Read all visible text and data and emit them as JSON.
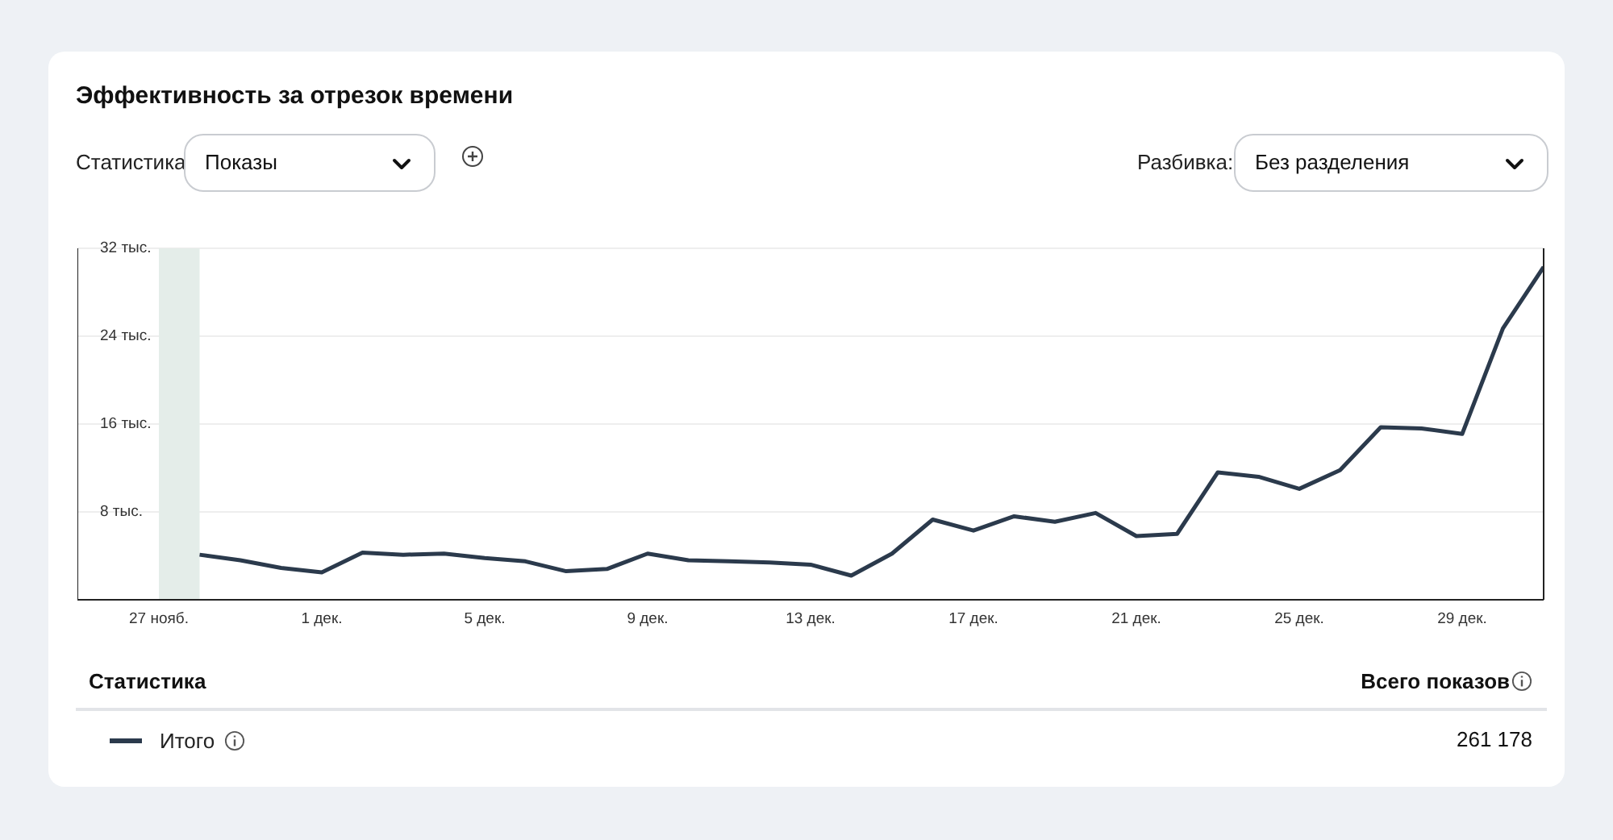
{
  "chart_data": {
    "type": "line",
    "title": "Эффективность за отрезок времени",
    "x": [
      "--11-28",
      "--11-29",
      "--11-30",
      "--12-01",
      "--12-02",
      "--12-03",
      "--12-04",
      "--12-05",
      "--12-06",
      "--12-07",
      "--12-08",
      "--12-09",
      "--12-10",
      "--12-11",
      "--12-12",
      "--12-13",
      "--12-14",
      "--12-15",
      "--12-16",
      "--12-17",
      "--12-18",
      "--12-19",
      "--12-20",
      "--12-21",
      "--12-22",
      "--12-23",
      "--12-24",
      "--12-25",
      "--12-26",
      "--12-27",
      "--12-28",
      "--12-29",
      "--12-30",
      "--12-31"
    ],
    "series": [
      {
        "name": "Итого",
        "color": "#2b3a4c",
        "values": [
          4.1,
          3.6,
          2.9,
          2.5,
          4.3,
          4.1,
          4.2,
          3.8,
          3.5,
          2.6,
          2.8,
          4.2,
          3.6,
          3.5,
          3.4,
          3.2,
          2.2,
          4.2,
          7.3,
          6.3,
          7.6,
          7.1,
          7.9,
          5.8,
          6.0,
          11.6,
          11.2,
          10.1,
          11.8,
          15.7,
          15.6,
          15.1,
          24.7,
          30.3
        ]
      }
    ],
    "xlim": [
      "--11-25",
      "--12-31"
    ],
    "xticks": [
      {
        "value": "--11-27",
        "label": "27 нояб."
      },
      {
        "value": "--12-01",
        "label": "1 дек."
      },
      {
        "value": "--12-05",
        "label": "5 дек."
      },
      {
        "value": "--12-09",
        "label": "9 дек."
      },
      {
        "value": "--12-13",
        "label": "13 дек."
      },
      {
        "value": "--12-17",
        "label": "17 дек."
      },
      {
        "value": "--12-21",
        "label": "21 дек."
      },
      {
        "value": "--12-25",
        "label": "25 дек."
      },
      {
        "value": "--12-29",
        "label": "29 дек."
      }
    ],
    "ylim": [
      0,
      32
    ],
    "yticks": [
      {
        "value": 8,
        "label": "8 тыс."
      },
      {
        "value": 16,
        "label": "16 тыс."
      },
      {
        "value": 24,
        "label": "24 тыс."
      },
      {
        "value": 32,
        "label": "32 тыс."
      }
    ],
    "bands": [
      {
        "axis": "x",
        "from": "--11-27",
        "to": "--11-28",
        "color": "#e4ede9"
      }
    ],
    "grid": "y",
    "legend": "bottom",
    "line_style": "solid",
    "annotations": [
      "Статистика",
      "Показы",
      "Разбивка:",
      "Без разделения",
      "Статистика",
      "Всего показов",
      "261 178"
    ]
  }
}
